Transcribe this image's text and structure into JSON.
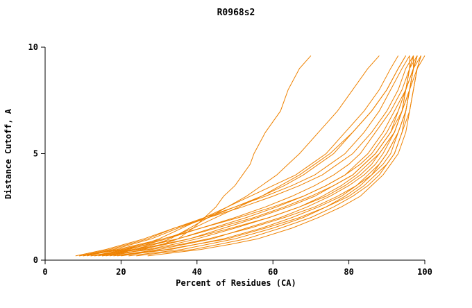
{
  "chart_data": {
    "type": "line",
    "title": "R0968s2",
    "xlabel": "Percent of Residues (CA)",
    "ylabel": "Distance Cutoff, A",
    "xlim": [
      0,
      100
    ],
    "ylim": [
      0,
      10
    ],
    "xticks": [
      0,
      20,
      40,
      60,
      80,
      100
    ],
    "yticks": [
      0,
      5,
      10
    ],
    "grid": false,
    "legend": "none",
    "line_color": "#ef8200",
    "y_samples": [
      0.2,
      0.35,
      0.5,
      0.75,
      1.0,
      1.5,
      2.0,
      2.5,
      3.0,
      3.5,
      4.0,
      4.5,
      5.0,
      6.0,
      7.0,
      8.0,
      9.0,
      9.6
    ],
    "series": [
      {
        "x": [
          17,
          22,
          26,
          31,
          35,
          39,
          42,
          45,
          47,
          50,
          52,
          54,
          55,
          58,
          62,
          64,
          67,
          70
        ]
      },
      {
        "x": [
          15,
          20,
          24,
          29,
          33,
          38,
          43,
          48,
          53,
          57,
          61,
          64,
          67,
          72,
          77,
          81,
          85,
          88
        ]
      },
      {
        "x": [
          12,
          17,
          21,
          26,
          30,
          36,
          42,
          48,
          54,
          60,
          66,
          70,
          74,
          79,
          84,
          88,
          91,
          93
        ]
      },
      {
        "x": [
          10,
          14,
          18,
          23,
          28,
          35,
          43,
          50,
          57,
          63,
          68,
          72,
          76,
          81,
          86,
          90,
          93,
          95
        ]
      },
      {
        "x": [
          9,
          13,
          17,
          22,
          27,
          34,
          42,
          50,
          58,
          65,
          71,
          75,
          79,
          84,
          88,
          91,
          94,
          96
        ]
      },
      {
        "x": [
          8,
          12,
          16,
          21,
          26,
          34,
          43,
          52,
          60,
          67,
          73,
          77,
          81,
          86,
          90,
          93,
          95,
          97
        ]
      },
      {
        "x": [
          11,
          15,
          20,
          26,
          32,
          41,
          50,
          58,
          65,
          71,
          76,
          80,
          83,
          87,
          91,
          94,
          96,
          98
        ]
      },
      {
        "x": [
          13,
          18,
          23,
          29,
          35,
          44,
          53,
          61,
          68,
          74,
          79,
          82,
          85,
          89,
          92,
          95,
          97,
          99
        ]
      },
      {
        "x": [
          14,
          19,
          25,
          32,
          38,
          47,
          56,
          64,
          71,
          76,
          81,
          84,
          87,
          91,
          94,
          96,
          98,
          100
        ]
      },
      {
        "x": [
          16,
          21,
          27,
          34,
          40,
          50,
          59,
          67,
          73,
          78,
          82,
          85,
          88,
          92,
          94,
          96,
          97,
          98
        ]
      },
      {
        "x": [
          18,
          24,
          30,
          37,
          44,
          53,
          62,
          69,
          75,
          80,
          84,
          87,
          89,
          92,
          94,
          95,
          96,
          97
        ]
      },
      {
        "x": [
          20,
          26,
          33,
          40,
          47,
          57,
          65,
          72,
          78,
          82,
          85,
          88,
          90,
          93,
          95,
          96,
          97,
          98
        ]
      },
      {
        "x": [
          22,
          29,
          36,
          43,
          50,
          60,
          68,
          74,
          79,
          83,
          86,
          89,
          91,
          93,
          95,
          96,
          97,
          97
        ]
      },
      {
        "x": [
          24,
          31,
          39,
          46,
          53,
          62,
          70,
          76,
          81,
          85,
          88,
          90,
          92,
          94,
          95,
          96,
          97,
          98
        ]
      },
      {
        "x": [
          27,
          34,
          41,
          49,
          56,
          65,
          72,
          78,
          83,
          86,
          89,
          91,
          93,
          95,
          96,
          97,
          98,
          99
        ]
      },
      {
        "x": [
          10,
          15,
          21,
          28,
          35,
          45,
          55,
          63,
          70,
          76,
          81,
          84,
          87,
          91,
          93,
          95,
          96,
          96
        ]
      },
      {
        "x": [
          12,
          18,
          24,
          31,
          38,
          49,
          59,
          67,
          74,
          79,
          83,
          86,
          88,
          92,
          94,
          95,
          96,
          97
        ]
      },
      {
        "x": [
          9,
          14,
          19,
          25,
          31,
          41,
          51,
          60,
          68,
          74,
          79,
          83,
          86,
          90,
          93,
          95,
          97,
          98
        ]
      },
      {
        "x": [
          15,
          21,
          28,
          36,
          43,
          54,
          63,
          71,
          77,
          82,
          86,
          88,
          90,
          93,
          95,
          96,
          97,
          98
        ]
      },
      {
        "x": [
          19,
          25,
          32,
          40,
          48,
          58,
          67,
          74,
          80,
          84,
          87,
          90,
          92,
          94,
          96,
          97,
          98,
          99
        ]
      },
      {
        "x": [
          13,
          17,
          22,
          27,
          32,
          39,
          45,
          51,
          57,
          62,
          67,
          71,
          75,
          81,
          86,
          90,
          93,
          95
        ]
      }
    ]
  }
}
